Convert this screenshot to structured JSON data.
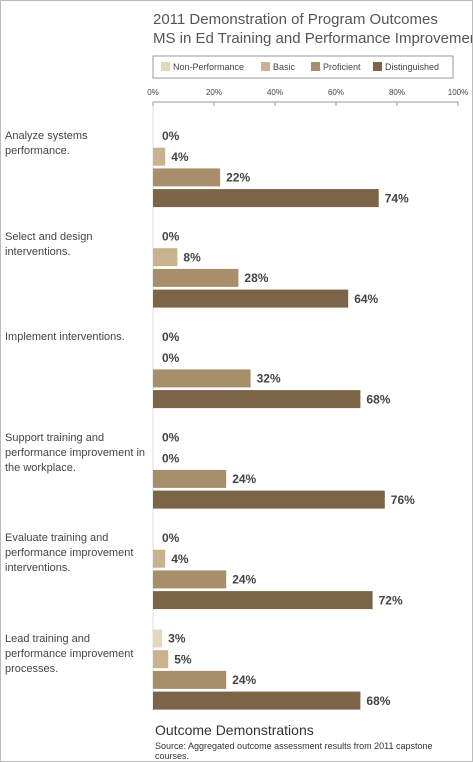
{
  "chart_data": {
    "type": "bar",
    "orientation": "horizontal",
    "title": "2011 Demonstration of Program Outcomes",
    "subtitle": "MS in Ed Training and Performance Improvement",
    "categories": [
      "Analyze systems performance.",
      "Select and design interventions.",
      "Implement interventions.",
      "Support training and performance improvement in the workplace.",
      "Evaluate training and performance improvement interventions.",
      "Lead training and performance improvement processes."
    ],
    "series": [
      {
        "name": "Non-Performance",
        "color": "#e4d7bb",
        "values": [
          0,
          0,
          0,
          0,
          0,
          3
        ],
        "value_labels": [
          "0%",
          "0%",
          "0%",
          "0%",
          "0%",
          "3%"
        ]
      },
      {
        "name": "Basic",
        "color": "#c9b28f",
        "values": [
          4,
          8,
          0,
          0,
          4,
          5
        ],
        "value_labels": [
          "4%",
          "8%",
          "0%",
          "0%",
          "4%",
          "5%"
        ]
      },
      {
        "name": "Proficient",
        "color": "#a88f6c",
        "values": [
          22,
          28,
          32,
          24,
          24,
          24
        ],
        "value_labels": [
          "22%",
          "28%",
          "32%",
          "24%",
          "24%",
          "24%"
        ]
      },
      {
        "name": "Distinguished",
        "color": "#7b6447",
        "values": [
          74,
          64,
          68,
          76,
          72,
          68
        ],
        "value_labels": [
          "74%",
          "64%",
          "68%",
          "76%",
          "72%",
          "68%"
        ]
      }
    ],
    "xlim": [
      0,
      100
    ],
    "xticks": [
      {
        "value": 0,
        "label": "0%"
      },
      {
        "value": 20,
        "label": "20%"
      },
      {
        "value": 40,
        "label": "40%"
      },
      {
        "value": 60,
        "label": "60%"
      },
      {
        "value": 80,
        "label": "80%"
      },
      {
        "value": 100,
        "label": "100%"
      }
    ],
    "x_label": "Outcome Demonstrations",
    "source": "Source: Aggregated outcome assessment results from 2011 capstone courses."
  }
}
